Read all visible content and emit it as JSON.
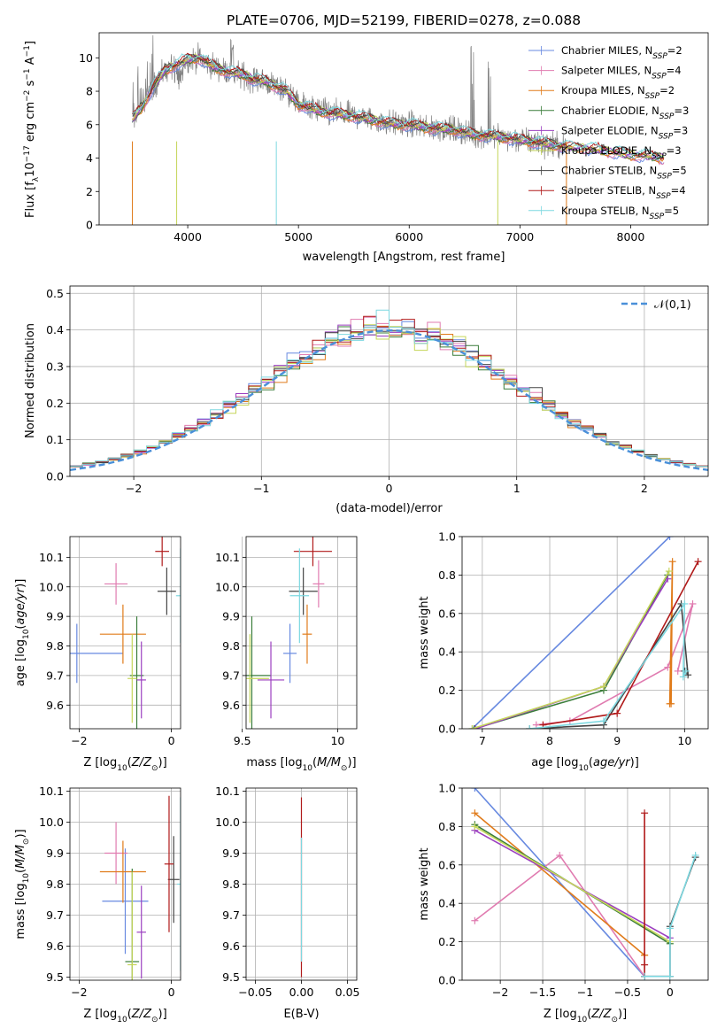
{
  "chart_data": [
    {
      "id": "spectrum",
      "type": "line",
      "title": "PLATE=0706, MJD=52199, FIBERID=0278, z=0.088",
      "xlabel": "wavelength [Angstrom, rest frame]",
      "ylabel": "Flux [f_λ10^-17 erg cm^-2 s^-1 A^-1]",
      "xlim": [
        3200,
        8700
      ],
      "ylim": [
        0,
        11.5
      ],
      "xticks": [
        4000,
        5000,
        6000,
        7000,
        8000
      ],
      "yticks": [
        0,
        2,
        4,
        6,
        8,
        10
      ],
      "data_color": "#808080",
      "model_envelope": {
        "x": [
          3500,
          3600,
          3700,
          3800,
          3900,
          4000,
          4100,
          4200,
          4300,
          4400,
          4500,
          4600,
          4700,
          4800,
          4900,
          5000,
          5200,
          5400,
          5600,
          5800,
          6000,
          6200,
          6400,
          6600,
          6800,
          7000,
          7200,
          7400,
          7600,
          7800,
          8000,
          8200,
          8300
        ],
        "y": [
          6.3,
          7.2,
          8.4,
          9.3,
          9.6,
          9.9,
          10.0,
          9.6,
          9.3,
          9.1,
          9.0,
          8.7,
          8.6,
          8.3,
          8.0,
          7.2,
          6.8,
          6.6,
          6.4,
          6.1,
          6.0,
          5.8,
          5.7,
          5.4,
          5.3,
          5.1,
          4.9,
          4.7,
          4.6,
          4.4,
          4.2,
          4.1,
          4.0
        ]
      },
      "legend": {
        "placement": "upper right",
        "entries": [
          {
            "label": "Chabrier MILES, N_SSP=2",
            "color": "#6789e0"
          },
          {
            "label": "Salpeter MILES, N_SSP=4",
            "color": "#e07bb0"
          },
          {
            "label": "Kroupa MILES, N_SSP=2",
            "color": "#e07b1a"
          },
          {
            "label": "Chabrier ELODIE, N_SSP=3",
            "color": "#3a7d3a"
          },
          {
            "label": "Salpeter ELODIE, N_SSP=3",
            "color": "#9b3fc0"
          },
          {
            "label": "Kroupa ELODIE, N_SSP=3",
            "color": "#c5d65a"
          },
          {
            "label": "Chabrier STELIB, N_SSP=5",
            "color": "#444444"
          },
          {
            "label": "Salpeter STELIB, N_SSP=4",
            "color": "#b01a1a"
          },
          {
            "label": "Kroupa STELIB, N_SSP=5",
            "color": "#7dd8e0"
          }
        ]
      }
    },
    {
      "id": "residual-hist",
      "type": "line",
      "xlabel": "(data-model)/error",
      "ylabel": "Normed distribution",
      "xlim": [
        -2.5,
        2.5
      ],
      "ylim": [
        0,
        0.52
      ],
      "xticks": [
        -2,
        -1,
        0,
        1,
        2
      ],
      "yticks": [
        0.0,
        0.1,
        0.2,
        0.3,
        0.4,
        0.5
      ],
      "grid": true,
      "gaussian_label": "𝒩(0,1)",
      "gaussian_color": "#4a90d9",
      "bin_width": 0.1,
      "bin_start": -2.5,
      "legend": {
        "placement": "upper right"
      }
    },
    {
      "id": "age-vs-Z",
      "type": "scatter",
      "xlabel": "Z [log10(Z/Z⊙)]",
      "ylabel": "age  [log10(age/yr)]",
      "xlim": [
        -2.2,
        0.2
      ],
      "ylim": [
        9.52,
        10.17
      ],
      "xticks": [
        -2,
        0
      ],
      "yticks": [
        9.6,
        9.7,
        9.8,
        9.9,
        10.0,
        10.1
      ],
      "points": [
        {
          "x": -2.05,
          "xerr": 2.0,
          "y": 9.775,
          "yerr": 0.1,
          "color": "#6789e0"
        },
        {
          "x": -1.2,
          "xerr": 0.5,
          "y": 10.01,
          "yerr": 0.07,
          "color": "#e07bb0"
        },
        {
          "x": -1.05,
          "xerr": 1.0,
          "y": 9.84,
          "yerr": 0.1,
          "color": "#e07b1a"
        },
        {
          "x": -0.75,
          "xerr": 0.3,
          "y": 9.7,
          "yerr": 0.2,
          "color": "#3a7d3a"
        },
        {
          "x": -0.65,
          "xerr": 0.2,
          "y": 9.685,
          "yerr": 0.13,
          "color": "#9b3fc0"
        },
        {
          "x": -0.85,
          "xerr": 0.2,
          "y": 9.69,
          "yerr": 0.15,
          "color": "#c5d65a"
        },
        {
          "x": -0.1,
          "xerr": 0.4,
          "y": 9.985,
          "yerr": 0.08,
          "color": "#444444"
        },
        {
          "x": -0.2,
          "xerr": 0.3,
          "y": 10.12,
          "yerr": 0.05,
          "color": "#b01a1a"
        },
        {
          "x": 0.2,
          "xerr": 0.2,
          "y": 9.97,
          "yerr": 0.16,
          "color": "#7dd8e0"
        }
      ]
    },
    {
      "id": "age-vs-mass",
      "type": "scatter",
      "xlabel": "mass [log10(M/M⊙)]",
      "ylabel": "",
      "xlim": [
        9.52,
        10.1
      ],
      "ylim": [
        9.52,
        10.17
      ],
      "xticks": [
        9.5,
        10.0
      ],
      "yticks": [
        9.6,
        9.7,
        9.8,
        9.9,
        10.0,
        10.1
      ],
      "points": [
        {
          "x": 9.75,
          "xerr": 0.07,
          "y": 9.775,
          "yerr": 0.1,
          "color": "#6789e0"
        },
        {
          "x": 9.9,
          "xerr": 0.06,
          "y": 10.01,
          "yerr": 0.08,
          "color": "#e07bb0"
        },
        {
          "x": 9.84,
          "xerr": 0.05,
          "y": 9.84,
          "yerr": 0.1,
          "color": "#e07b1a"
        },
        {
          "x": 9.55,
          "xerr": 0.2,
          "y": 9.7,
          "yerr": 0.2,
          "color": "#3a7d3a"
        },
        {
          "x": 9.65,
          "xerr": 0.14,
          "y": 9.685,
          "yerr": 0.13,
          "color": "#9b3fc0"
        },
        {
          "x": 9.54,
          "xerr": 0.2,
          "y": 9.69,
          "yerr": 0.15,
          "color": "#c5d65a"
        },
        {
          "x": 9.82,
          "xerr": 0.15,
          "y": 9.985,
          "yerr": 0.08,
          "color": "#444444"
        },
        {
          "x": 9.87,
          "xerr": 0.2,
          "y": 10.12,
          "yerr": 0.05,
          "color": "#b01a1a"
        },
        {
          "x": 9.8,
          "xerr": 0.1,
          "y": 9.97,
          "yerr": 0.16,
          "color": "#7dd8e0"
        }
      ]
    },
    {
      "id": "weight-vs-age",
      "type": "line",
      "xlabel": "age  [log10(age/yr)]",
      "ylabel": "mass weight",
      "xlim": [
        6.7,
        10.35
      ],
      "ylim": [
        0,
        1.0
      ],
      "xticks": [
        7,
        8,
        9,
        10
      ],
      "yticks": [
        0.0,
        0.2,
        0.4,
        0.6,
        0.8,
        1.0
      ],
      "grid": true,
      "series": [
        {
          "color": "#6789e0",
          "x": [
            6.85,
            9.78
          ],
          "y": [
            0.0,
            1.0
          ]
        },
        {
          "color": "#e07bb0",
          "x": [
            7.8,
            8.3,
            9.75,
            10.12,
            9.9
          ],
          "y": [
            0.02,
            0.04,
            0.32,
            0.65,
            0.3
          ]
        },
        {
          "color": "#e07b1a",
          "x": [
            9.8,
            9.82,
            9.78
          ],
          "y": [
            0.13,
            0.87,
            0.13
          ]
        },
        {
          "color": "#3a7d3a",
          "x": [
            6.88,
            8.8,
            9.75
          ],
          "y": [
            0.0,
            0.2,
            0.8
          ]
        },
        {
          "color": "#9b3fc0",
          "x": [
            6.9,
            8.8,
            9.75
          ],
          "y": [
            0.0,
            0.22,
            0.78
          ]
        },
        {
          "color": "#c5d65a",
          "x": [
            6.85,
            8.8,
            9.77
          ],
          "y": [
            0.0,
            0.22,
            0.82
          ]
        },
        {
          "color": "#444444",
          "x": [
            7.7,
            8.8,
            9.95,
            10.05,
            10.0
          ],
          "y": [
            0.0,
            0.02,
            0.65,
            0.28,
            0.3
          ]
        },
        {
          "color": "#b01a1a",
          "x": [
            7.9,
            9.0,
            10.2
          ],
          "y": [
            0.02,
            0.08,
            0.87
          ]
        },
        {
          "color": "#7dd8e0",
          "x": [
            7.7,
            8.8,
            10.0,
            9.98,
            10.02
          ],
          "y": [
            0.0,
            0.04,
            0.65,
            0.27,
            0.3
          ]
        }
      ]
    },
    {
      "id": "mass-vs-Z",
      "type": "scatter",
      "xlabel": "Z [log10(Z/Z⊙)]",
      "ylabel": "mass [log10(M/M⊙)]",
      "xlim": [
        -2.2,
        0.2
      ],
      "ylim": [
        9.49,
        10.11
      ],
      "xticks": [
        -2,
        0
      ],
      "yticks": [
        9.5,
        9.6,
        9.7,
        9.8,
        9.9,
        10.0,
        10.1
      ],
      "points": [
        {
          "x": -1.0,
          "xerr": 1.0,
          "y": 9.745,
          "yerr": 0.17,
          "color": "#6789e0"
        },
        {
          "x": -1.2,
          "xerr": 0.5,
          "y": 9.9,
          "yerr": 0.1,
          "color": "#e07bb0"
        },
        {
          "x": -1.05,
          "xerr": 1.0,
          "y": 9.84,
          "yerr": 0.1,
          "color": "#e07b1a"
        },
        {
          "x": -0.85,
          "xerr": 0.3,
          "y": 9.55,
          "yerr": 0.3,
          "color": "#3a7d3a"
        },
        {
          "x": -0.65,
          "xerr": 0.2,
          "y": 9.645,
          "yerr": 0.15,
          "color": "#9b3fc0"
        },
        {
          "x": -0.85,
          "xerr": 0.2,
          "y": 9.54,
          "yerr": 0.3,
          "color": "#c5d65a"
        },
        {
          "x": 0.05,
          "xerr": 0.25,
          "y": 9.815,
          "yerr": 0.14,
          "color": "#444444"
        },
        {
          "x": -0.05,
          "xerr": 0.2,
          "y": 9.865,
          "yerr": 0.22,
          "color": "#b01a1a"
        },
        {
          "x": 0.2,
          "xerr": 0.15,
          "y": 9.8,
          "yerr": 0.28,
          "color": "#7dd8e0"
        }
      ]
    },
    {
      "id": "mass-vs-ebv",
      "type": "scatter",
      "xlabel": "E(B-V)",
      "ylabel": "",
      "xlim": [
        -0.06,
        0.06
      ],
      "ylim": [
        9.49,
        10.11
      ],
      "xticks": [
        -0.05,
        0.0,
        0.05
      ],
      "xticklabels": [
        "−0.05",
        "0.00",
        "0.05"
      ],
      "yticks": [
        9.5,
        9.6,
        9.7,
        9.8,
        9.9,
        10.0,
        10.1
      ],
      "points": [
        {
          "x": 0.0,
          "y": 9.79,
          "yerr": 0.29,
          "color": "#b01a1a"
        },
        {
          "x": 0.0,
          "y": 9.75,
          "yerr": 0.2,
          "color": "#7dd8e0"
        }
      ]
    },
    {
      "id": "weight-vs-Z",
      "type": "line",
      "xlabel": "Z [log10(Z/Z⊙)]",
      "ylabel": "mass weight",
      "xlim": [
        -2.45,
        0.45
      ],
      "ylim": [
        0,
        1.0
      ],
      "xticks": [
        -2.0,
        -1.5,
        -1.0,
        -0.5,
        0.0
      ],
      "yticks": [
        0.0,
        0.2,
        0.4,
        0.6,
        0.8,
        1.0
      ],
      "grid": true,
      "series": [
        {
          "color": "#6789e0",
          "x": [
            -2.3,
            -0.3
          ],
          "y": [
            1.0,
            0.02
          ]
        },
        {
          "color": "#e07bb0",
          "x": [
            -2.3,
            -1.3,
            -0.3
          ],
          "y": [
            0.31,
            0.65,
            0.02
          ]
        },
        {
          "color": "#e07b1a",
          "x": [
            -2.3,
            -0.3,
            -0.3
          ],
          "y": [
            0.87,
            0.13,
            0.13
          ]
        },
        {
          "color": "#3a7d3a",
          "x": [
            -2.3,
            0.0
          ],
          "y": [
            0.81,
            0.19
          ]
        },
        {
          "color": "#9b3fc0",
          "x": [
            -2.3,
            0.0
          ],
          "y": [
            0.78,
            0.22
          ]
        },
        {
          "color": "#c5d65a",
          "x": [
            -2.3,
            0.0
          ],
          "y": [
            0.8,
            0.2
          ]
        },
        {
          "color": "#444444",
          "x": [
            -0.3,
            0.0,
            0.0,
            0.3
          ],
          "y": [
            0.02,
            0.02,
            0.28,
            0.64
          ]
        },
        {
          "color": "#b01a1a",
          "x": [
            -0.3,
            -0.3,
            -0.3
          ],
          "y": [
            0.08,
            0.87,
            0.02
          ]
        },
        {
          "color": "#7dd8e0",
          "x": [
            -0.3,
            0.0,
            0.0,
            0.3
          ],
          "y": [
            0.02,
            0.02,
            0.27,
            0.65
          ]
        }
      ]
    }
  ]
}
